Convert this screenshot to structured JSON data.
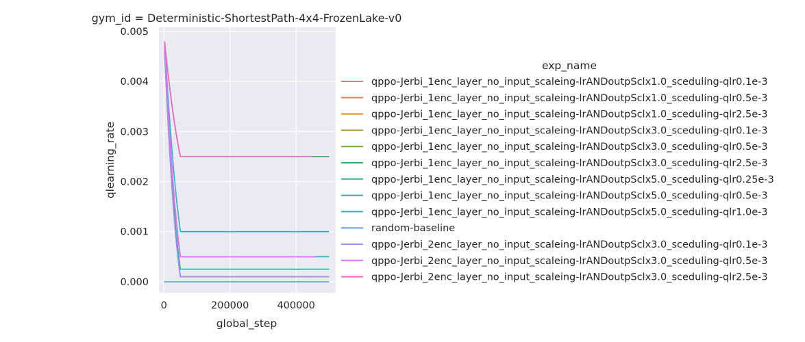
{
  "chart_data": {
    "type": "line",
    "title": "gym_id = Deterministic-ShortestPath-4x4-FrozenLake-v0",
    "xlabel": "global_step",
    "ylabel": "qlearning_rate",
    "xlim": [
      -15000,
      520000
    ],
    "ylim": [
      -0.00022,
      0.00508
    ],
    "xticks": [
      0,
      200000,
      400000
    ],
    "xtick_labels": [
      "0",
      "200000",
      "400000"
    ],
    "yticks": [
      0,
      0.001,
      0.002,
      0.003,
      0.004,
      0.005
    ],
    "ytick_labels": [
      "0.000",
      "0.001",
      "0.002",
      "0.003",
      "0.004",
      "0.005"
    ],
    "grid": true,
    "legend_title": "exp_name",
    "legend_position": "right",
    "series": [
      {
        "name": "qppo-Jerbi_1enc_layer_no_input_scaleing-lrANDoutpSclx1.0_sceduling-qlr0.1e-3",
        "color": "#f77189",
        "x": [
          2000,
          25000,
          50000,
          75000,
          440000
        ],
        "y": [
          0.0047,
          0.0012,
          0.0001,
          0.0001,
          0.0001
        ]
      },
      {
        "name": "qppo-Jerbi_1enc_layer_no_input_scaleing-lrANDoutpSclx1.0_sceduling-qlr0.5e-3",
        "color": "#f7754f",
        "x": [
          2000,
          25000,
          50000,
          75000,
          460000
        ],
        "y": [
          0.0048,
          0.0017,
          0.0005,
          0.0005,
          0.0005
        ]
      },
      {
        "name": "qppo-Jerbi_1enc_layer_no_input_scaleing-lrANDoutpSclx1.0_sceduling-qlr2.5e-3",
        "color": "#ce8f31",
        "x": [
          2000,
          25000,
          50000,
          75000,
          500000
        ],
        "y": [
          0.0048,
          0.0033,
          0.0025,
          0.0025,
          0.0025
        ]
      },
      {
        "name": "qppo-Jerbi_1enc_layer_no_input_scaleing-lrANDoutpSclx3.0_sceduling-qlr0.1e-3",
        "color": "#a59c32",
        "x": [
          2000,
          25000,
          50000,
          75000,
          500000
        ],
        "y": [
          0.0046,
          0.0012,
          0.0001,
          0.0001,
          0.0001
        ]
      },
      {
        "name": "qppo-Jerbi_1enc_layer_no_input_scaleing-lrANDoutpSclx3.0_sceduling-qlr0.5e-3",
        "color": "#74ab31",
        "x": [
          2000,
          25000,
          50000,
          75000,
          500000
        ],
        "y": [
          0.0047,
          0.0017,
          0.0005,
          0.0005,
          0.0005
        ]
      },
      {
        "name": "qppo-Jerbi_1enc_layer_no_input_scaleing-lrANDoutpSclx3.0_sceduling-qlr2.5e-3",
        "color": "#32b166",
        "x": [
          2000,
          25000,
          50000,
          75000,
          500000
        ],
        "y": [
          0.0048,
          0.0033,
          0.0025,
          0.0025,
          0.0025
        ]
      },
      {
        "name": "qppo-Jerbi_1enc_layer_no_input_scaleing-lrANDoutpSclx5.0_sceduling-qlr0.25e-3",
        "color": "#35ae92",
        "x": [
          2000,
          25000,
          50000,
          75000,
          500000
        ],
        "y": [
          0.0046,
          0.0014,
          0.00025,
          0.00025,
          0.00025
        ]
      },
      {
        "name": "qppo-Jerbi_1enc_layer_no_input_scaleing-lrANDoutpSclx5.0_sceduling-qlr0.5e-3",
        "color": "#37abab",
        "x": [
          2000,
          25000,
          50000,
          75000,
          500000
        ],
        "y": [
          0.0047,
          0.0017,
          0.0005,
          0.0005,
          0.0005
        ]
      },
      {
        "name": "qppo-Jerbi_1enc_layer_no_input_scaleing-lrANDoutpSclx5.0_sceduling-qlr1.0e-3",
        "color": "#3aa8c4",
        "x": [
          2000,
          25000,
          50000,
          75000,
          500000
        ],
        "y": [
          0.0048,
          0.0022,
          0.001,
          0.001,
          0.001
        ]
      },
      {
        "name": "random-baseline",
        "color": "#5a9ef4",
        "x": [
          0,
          500000
        ],
        "y": [
          0.0,
          0.0
        ]
      },
      {
        "name": "qppo-Jerbi_2enc_layer_no_input_scaleing-lrANDoutpSclx3.0_sceduling-qlr0.1e-3",
        "color": "#a48cf4",
        "x": [
          2000,
          25000,
          50000,
          75000,
          500000
        ],
        "y": [
          0.0047,
          0.0012,
          0.0001,
          0.0001,
          0.0001
        ]
      },
      {
        "name": "qppo-Jerbi_2enc_layer_no_input_scaleing-lrANDoutpSclx3.0_sceduling-qlr0.5e-3",
        "color": "#dc74f4",
        "x": [
          2000,
          25000,
          50000,
          75000,
          460000
        ],
        "y": [
          0.0048,
          0.0017,
          0.0005,
          0.0005,
          0.0005
        ]
      },
      {
        "name": "qppo-Jerbi_2enc_layer_no_input_scaleing-lrANDoutpSclx3.0_sceduling-qlr2.5e-3",
        "color": "#f565cc",
        "x": [
          2000,
          25000,
          50000,
          75000,
          450000
        ],
        "y": [
          0.0048,
          0.0033,
          0.0025,
          0.0025,
          0.0025
        ]
      }
    ]
  }
}
